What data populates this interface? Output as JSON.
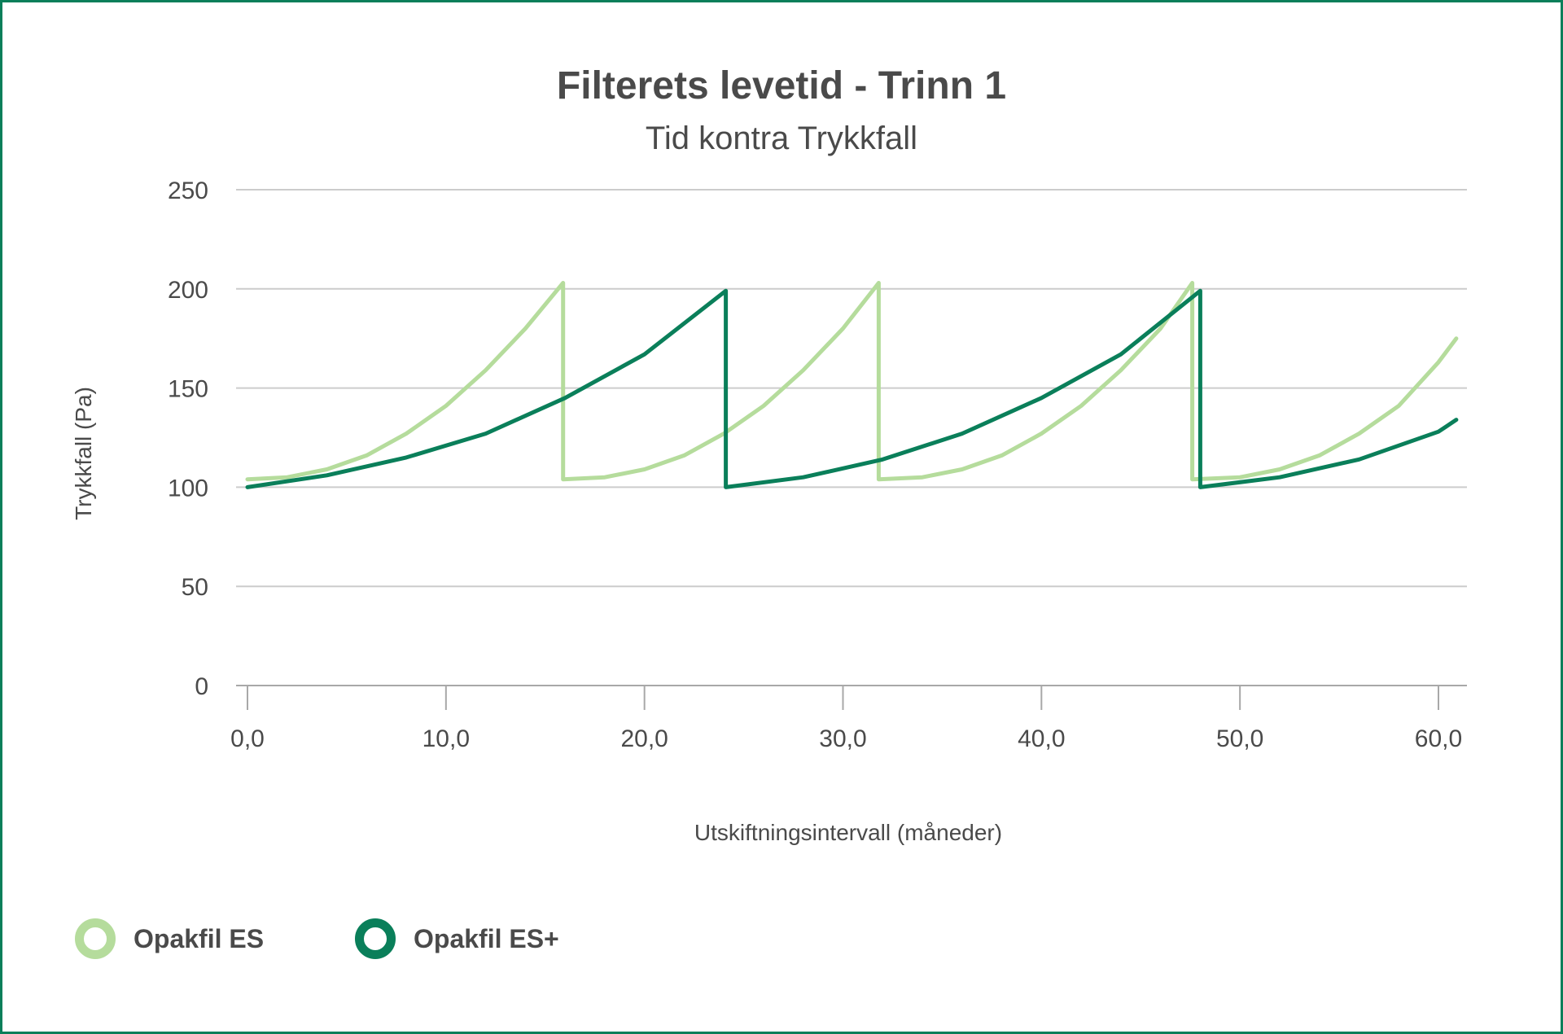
{
  "chart_data": {
    "type": "line",
    "title": "Filterets levetid - Trinn 1",
    "subtitle": "Tid kontra Trykkfall",
    "xlabel": "Utskiftningsintervall (måneder)",
    "ylabel": "Trykkfall (Pa)",
    "xlim": [
      0,
      61
    ],
    "ylim": [
      0,
      250
    ],
    "x_ticks": [
      "0,0",
      "10,0",
      "20,0",
      "30,0",
      "40,0",
      "50,0",
      "60,0"
    ],
    "y_ticks": [
      "0",
      "50",
      "100",
      "150",
      "200",
      "250"
    ],
    "grid": true,
    "legend_position": "bottom-left",
    "series": [
      {
        "name": "Opakfil ES",
        "color": "#b5dc9c",
        "points": [
          [
            0,
            104
          ],
          [
            2,
            105
          ],
          [
            4,
            109
          ],
          [
            6,
            116
          ],
          [
            8,
            127
          ],
          [
            10,
            141
          ],
          [
            12,
            159
          ],
          [
            14,
            180
          ],
          [
            15.9,
            203
          ],
          [
            15.9,
            104
          ],
          [
            18,
            105
          ],
          [
            20,
            109
          ],
          [
            22,
            116
          ],
          [
            24,
            127
          ],
          [
            26,
            141
          ],
          [
            28,
            159
          ],
          [
            30,
            180
          ],
          [
            31.8,
            203
          ],
          [
            31.8,
            104
          ],
          [
            34,
            105
          ],
          [
            36,
            109
          ],
          [
            38,
            116
          ],
          [
            40,
            127
          ],
          [
            42,
            141
          ],
          [
            44,
            159
          ],
          [
            46,
            180
          ],
          [
            47.6,
            203
          ],
          [
            47.6,
            104
          ],
          [
            50,
            105
          ],
          [
            52,
            109
          ],
          [
            54,
            116
          ],
          [
            56,
            127
          ],
          [
            58,
            141
          ],
          [
            60,
            163
          ],
          [
            60.9,
            175
          ]
        ]
      },
      {
        "name": "Opakfil ES+",
        "color": "#0a7f5a",
        "points": [
          [
            0,
            100
          ],
          [
            4,
            106
          ],
          [
            8,
            115
          ],
          [
            12,
            127
          ],
          [
            16,
            145
          ],
          [
            20,
            167
          ],
          [
            24.1,
            199
          ],
          [
            24.1,
            100
          ],
          [
            28,
            105
          ],
          [
            32,
            114
          ],
          [
            36,
            127
          ],
          [
            40,
            145
          ],
          [
            44,
            167
          ],
          [
            48,
            199
          ],
          [
            48,
            100
          ],
          [
            52,
            105
          ],
          [
            56,
            114
          ],
          [
            60,
            128
          ],
          [
            60.9,
            134
          ]
        ]
      }
    ]
  }
}
